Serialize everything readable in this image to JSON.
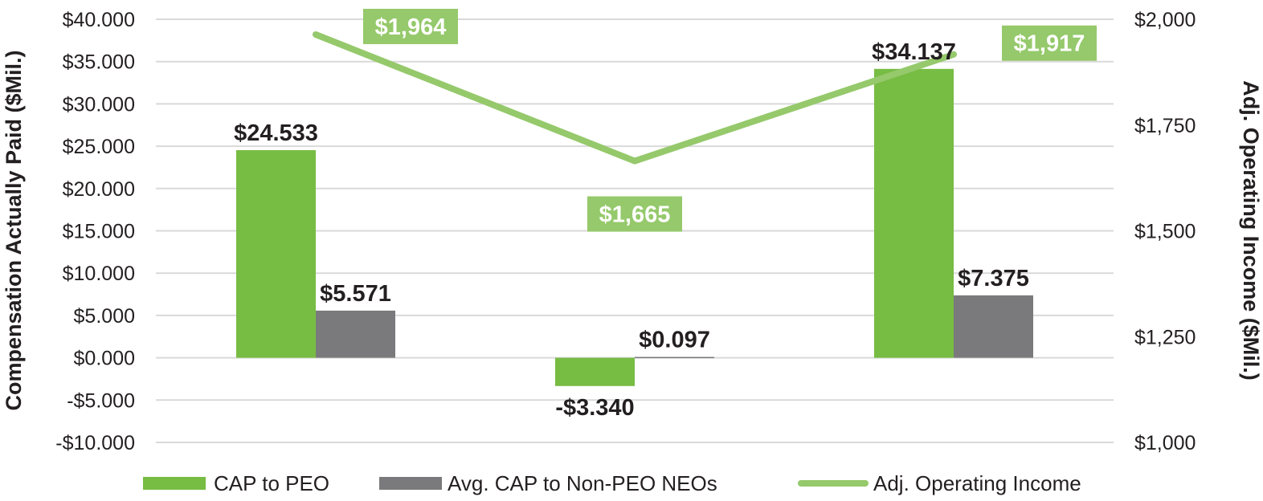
{
  "chart_data": {
    "type": "bar",
    "categories": [
      "",
      "",
      ""
    ],
    "series": [
      {
        "name": "CAP to PEO",
        "kind": "bar",
        "axis": "left",
        "color": "#77bc43",
        "values": [
          24.533,
          -3.34,
          34.137
        ],
        "labels": [
          "$24.533",
          "-$3.340",
          "$34.137"
        ]
      },
      {
        "name": "Avg. CAP to Non-PEO NEOs",
        "kind": "bar",
        "axis": "left",
        "color": "#7a7a7c",
        "values": [
          5.571,
          0.097,
          7.375
        ],
        "labels": [
          "$5.571",
          "$0.097",
          "$7.375"
        ]
      },
      {
        "name": "Adj. Operating Income",
        "kind": "line",
        "axis": "right",
        "color": "#95c96b",
        "values": [
          1964,
          1665,
          1917
        ],
        "labels": [
          "$1,964",
          "$1,665",
          "$1,917"
        ]
      }
    ],
    "ylabel": "Compensation Actually Paid ($Mil.)",
    "y2label": "Adj. Operating Income ($Mil.)",
    "ylim": [
      -10,
      40
    ],
    "y2lim": [
      1000,
      2000
    ],
    "yticks": [
      -10,
      -5,
      0,
      5,
      10,
      15,
      20,
      25,
      30,
      35,
      40
    ],
    "ytick_labels": [
      "-$10.000",
      "-$5.000",
      "$0.000",
      "$5.000",
      "$10.000",
      "$15.000",
      "$20.000",
      "$25.000",
      "$30.000",
      "$35.000",
      "$40.000"
    ],
    "y2ticks": [
      1000,
      1250,
      1500,
      1750,
      2000
    ],
    "y2tick_labels": [
      "$1,000",
      "$1,250",
      "$1,500",
      "$1,750",
      "$2,000"
    ],
    "grid": true,
    "legend_position": "bottom"
  }
}
